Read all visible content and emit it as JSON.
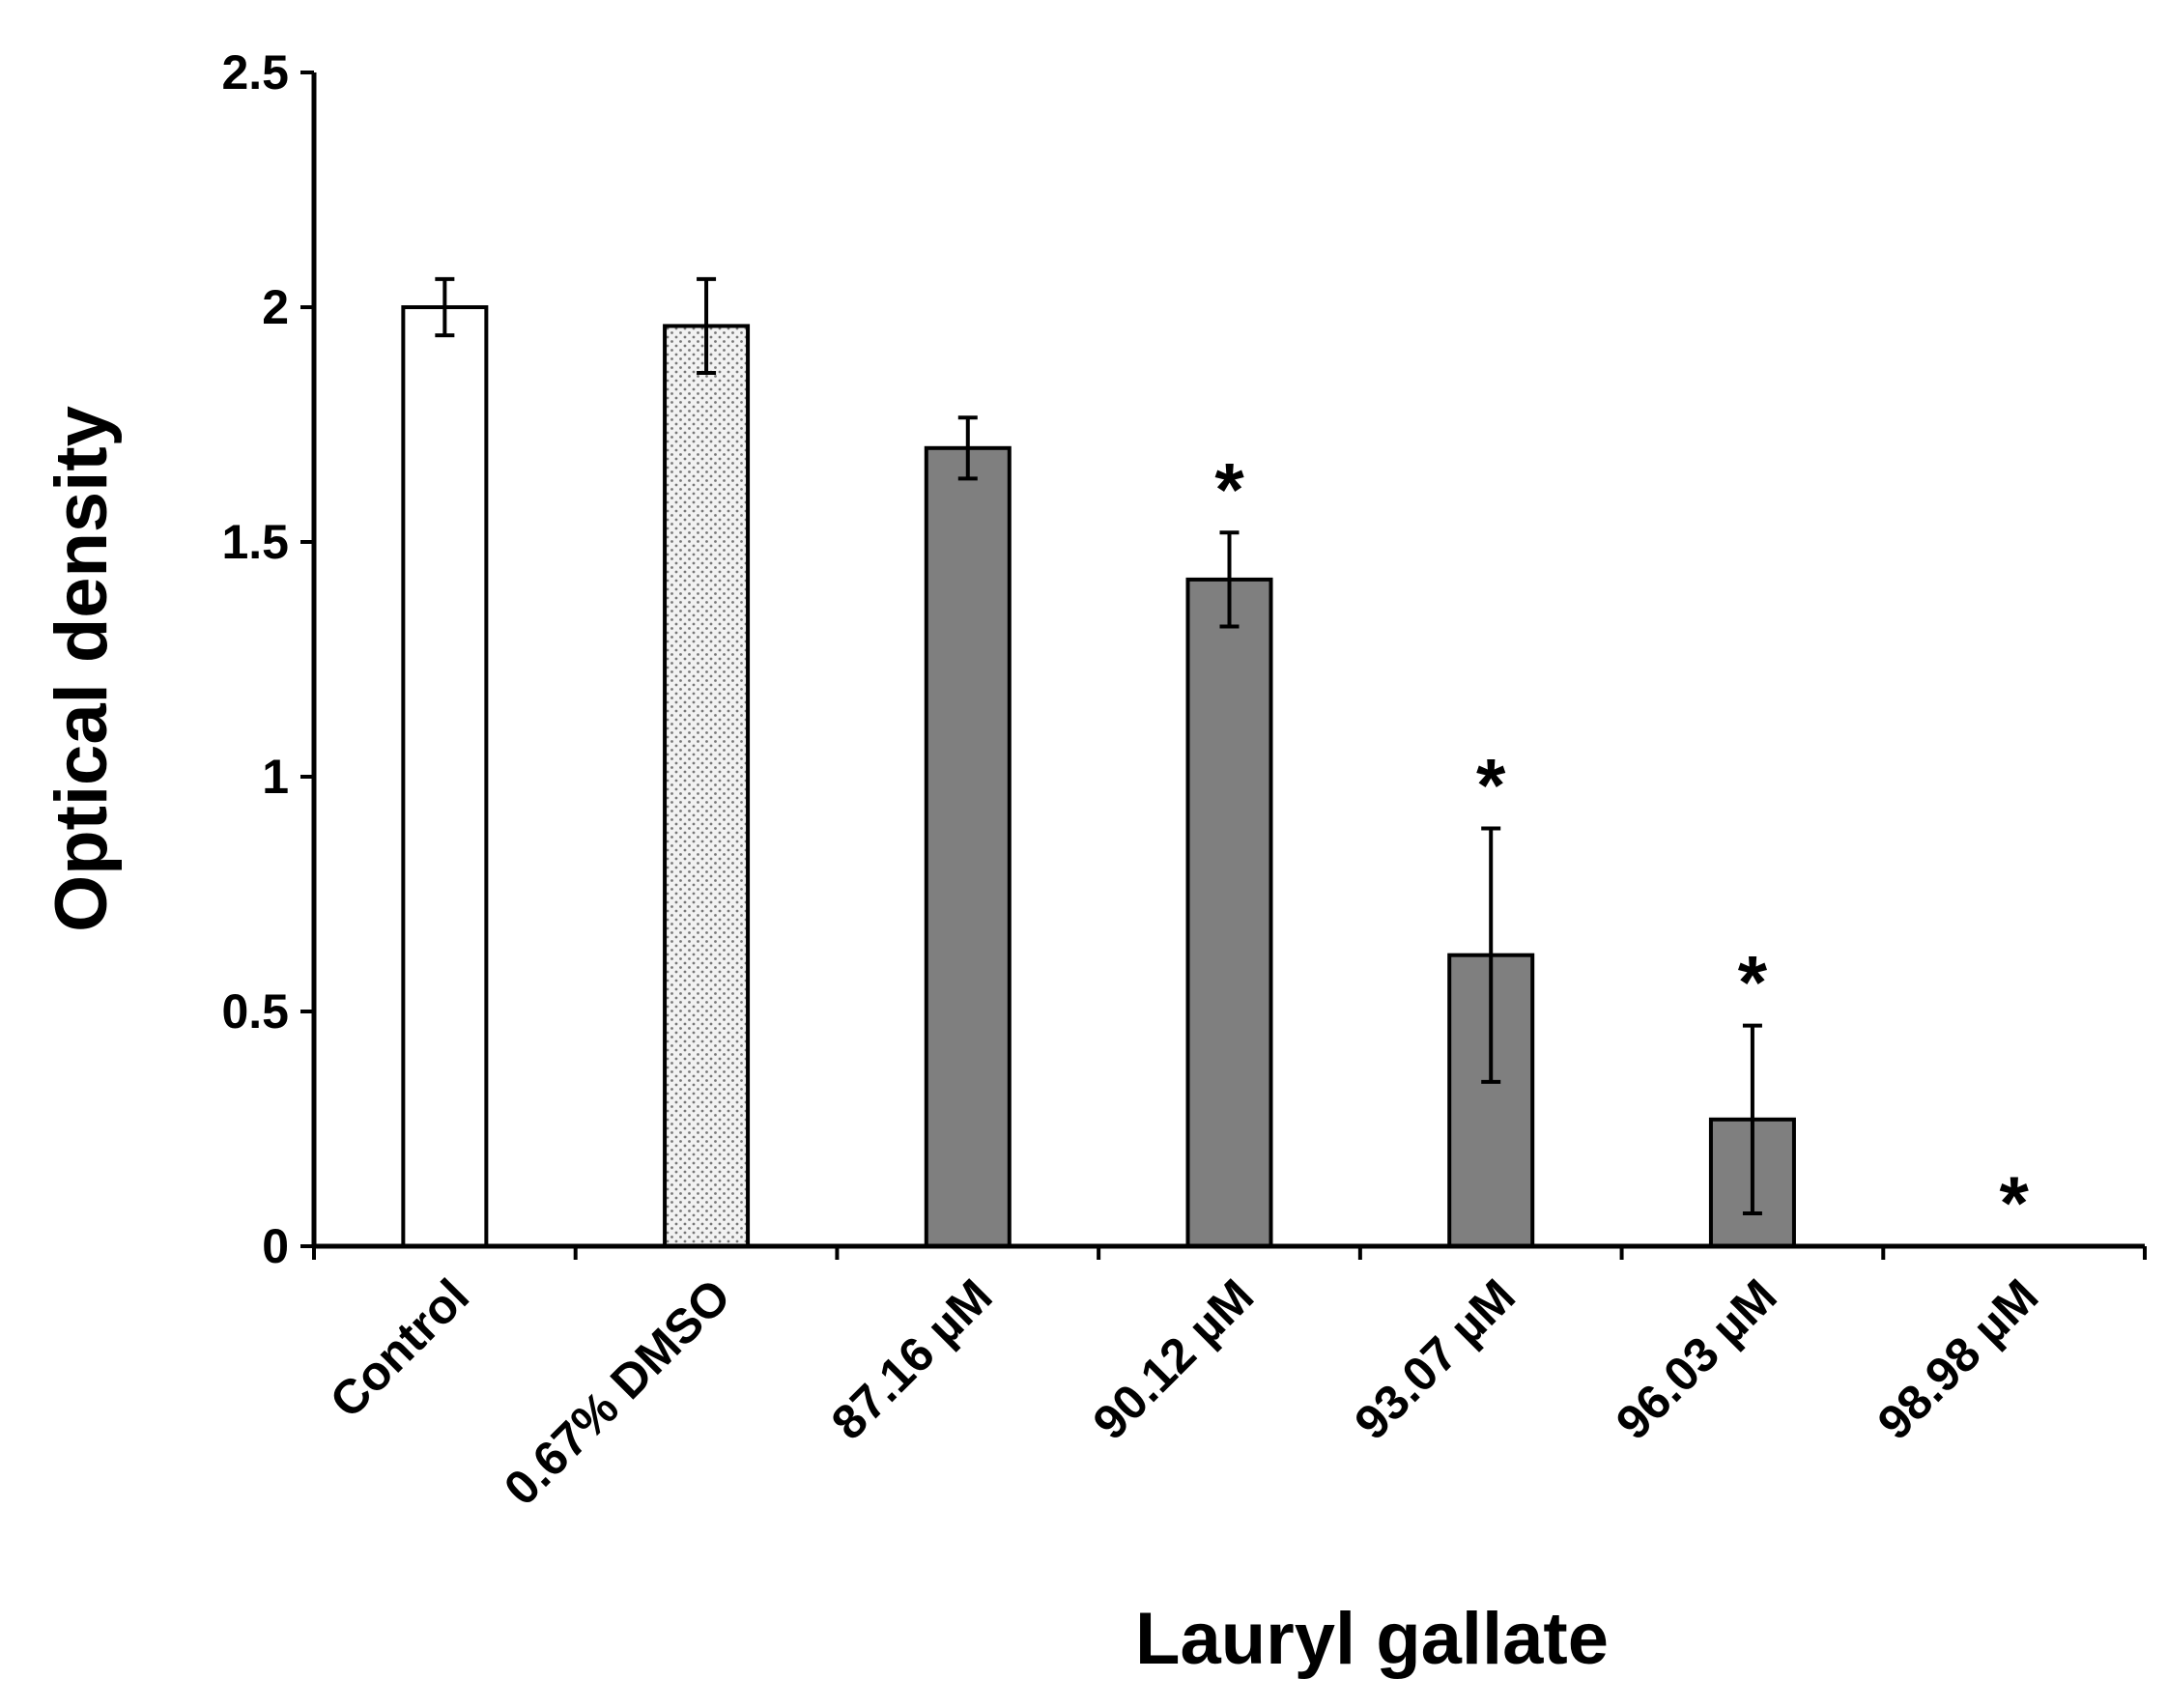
{
  "chart_data": {
    "type": "bar",
    "title": "",
    "xlabel": "Lauryl gallate",
    "ylabel": "Optical density",
    "ylim": [
      0,
      2.5
    ],
    "yticks": [
      "0",
      "0.5",
      "1",
      "1.5",
      "2",
      "2.5"
    ],
    "categories": [
      "Control",
      "0.67% DMSO",
      "87.16 µM",
      "90.12 µM",
      "93.07 µM",
      "96.03 µM",
      "98.98 µM"
    ],
    "values": [
      2.0,
      1.96,
      1.7,
      1.42,
      0.62,
      0.27,
      0.0
    ],
    "errors": [
      0.06,
      0.1,
      0.065,
      0.1,
      0.27,
      0.2,
      null
    ],
    "significance": [
      "",
      "",
      "",
      "*",
      "*",
      "*",
      "*"
    ],
    "bar_fills": [
      "white",
      "dotted",
      "gray",
      "gray",
      "gray",
      "gray",
      "gray"
    ],
    "colors": {
      "gray_bar": "#7f7f7f",
      "white_bar": "#ffffff",
      "dotted_bar": "#e6e6e6",
      "axis": "#000000"
    },
    "grid": false,
    "legend": "none"
  }
}
